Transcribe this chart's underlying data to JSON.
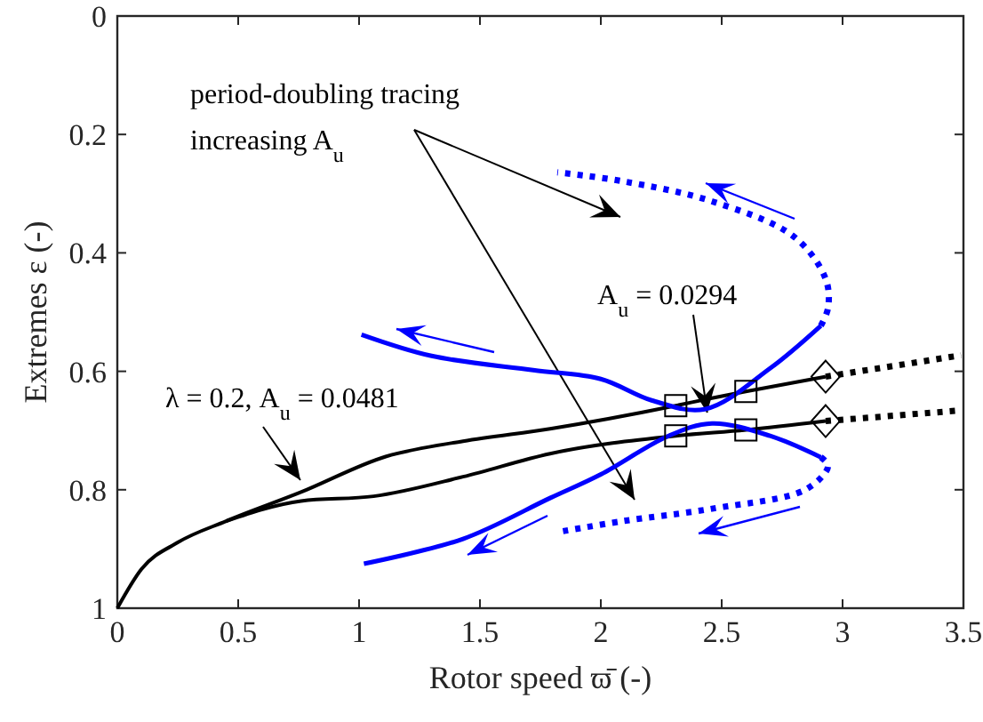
{
  "chart_data": {
    "type": "line",
    "xlabel": "Rotor speed ϖ̄ (-)",
    "ylabel": "Extremes ε (-)",
    "xlim": [
      0,
      3.5
    ],
    "xticks": [
      0,
      0.5,
      1,
      1.5,
      2,
      2.5,
      3,
      3.5
    ],
    "ylim": [
      1,
      0
    ],
    "yticks": [
      0,
      0.2,
      0.4,
      0.6,
      0.8,
      1
    ],
    "annotations": [
      "period-doubling tracing",
      "increasing A$_{u}$",
      {
        "text": "A$_{u}$ = 0.0294",
        "x": 2.44,
        "y": 0.67
      },
      "λ = 0.2, A$_{u}$ = 0.0481"
    ],
    "series": [
      {
        "color": "#000000",
        "line_style": "solid",
        "x": [
          0,
          0.1,
          0.25,
          0.45,
          0.76,
          1.11,
          1.43,
          1.79,
          2.31,
          2.45,
          2.6,
          2.93
        ],
        "values": [
          1,
          0.934,
          0.889,
          0.853,
          0.804,
          0.744,
          0.718,
          0.697,
          0.658,
          0.646,
          0.634,
          0.609
        ]
      },
      {
        "color": "#000000",
        "line_style": "dotted",
        "x": [
          2.93,
          3.49
        ],
        "values": [
          0.609,
          0.573
        ]
      },
      {
        "color": "#000000",
        "line_style": "solid",
        "x": [
          0.45,
          0.76,
          1.06,
          1.43,
          1.79,
          2.31,
          2.6,
          2.93
        ],
        "values": [
          0.853,
          0.819,
          0.811,
          0.778,
          0.739,
          0.709,
          0.699,
          0.684
        ]
      },
      {
        "color": "#000000",
        "line_style": "dotted",
        "x": [
          2.93,
          3.49
        ],
        "values": [
          0.684,
          0.666
        ]
      },
      {
        "color": "#0000ff",
        "line_style": "solid",
        "x": [
          1.01,
          1.3,
          1.72,
          2.0,
          2.21,
          2.43,
          2.7,
          2.91
        ],
        "values": [
          0.538,
          0.574,
          0.598,
          0.613,
          0.649,
          0.664,
          0.595,
          0.523
        ]
      },
      {
        "color": "#0000ff",
        "line_style": "dotted",
        "x": [
          2.91,
          2.94,
          2.93,
          2.8,
          2.46,
          2.09,
          1.82
        ],
        "values": [
          0.523,
          0.493,
          0.444,
          0.373,
          0.313,
          0.279,
          0.264
        ]
      },
      {
        "color": "#0000ff",
        "line_style": "solid",
        "x": [
          1.02,
          1.43,
          1.79,
          2.0,
          2.28,
          2.46,
          2.7,
          2.91
        ],
        "values": [
          0.925,
          0.883,
          0.814,
          0.774,
          0.709,
          0.688,
          0.709,
          0.745
        ]
      },
      {
        "color": "#0000ff",
        "line_style": "dotted",
        "x": [
          2.91,
          2.94,
          2.85,
          2.46,
          2.09,
          1.83
        ],
        "values": [
          0.745,
          0.76,
          0.799,
          0.832,
          0.853,
          0.871
        ]
      },
      {
        "type": "scatter",
        "color": "#000000",
        "marker": "square",
        "x": [
          2.31,
          2.31,
          2.6,
          2.6
        ],
        "values": [
          0.658,
          0.709,
          0.634,
          0.699
        ]
      },
      {
        "type": "scatter",
        "color": "#000000",
        "marker": "diamond",
        "x": [
          2.93,
          2.93
        ],
        "values": [
          0.609,
          0.684
        ]
      }
    ]
  }
}
